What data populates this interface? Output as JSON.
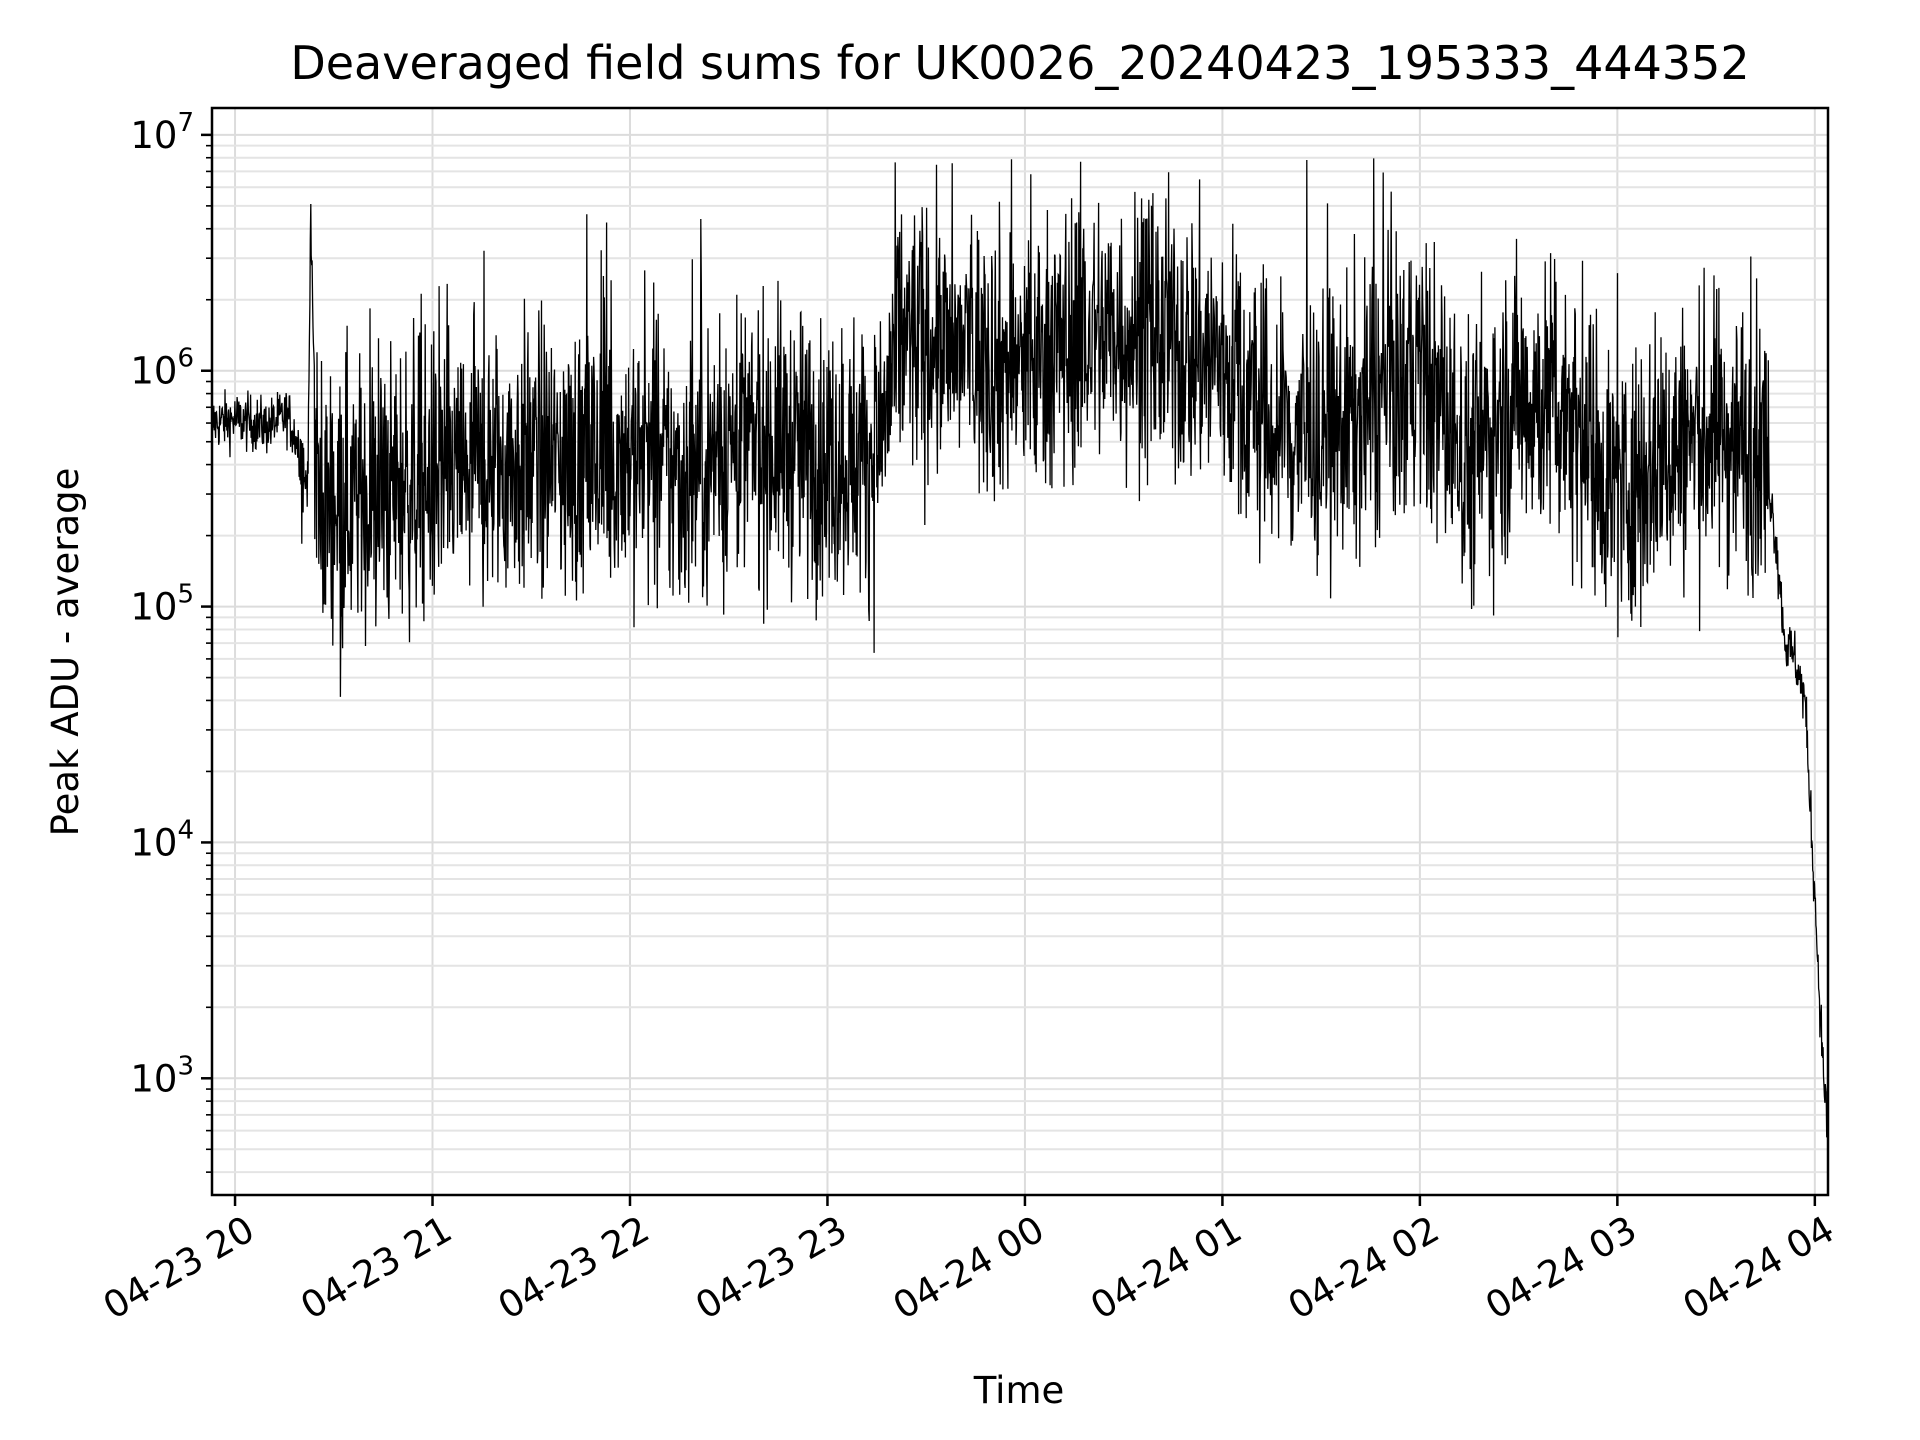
{
  "chart_data": {
    "type": "line",
    "title": "Deaveraged field sums for UK0026_20240423_195333_444352",
    "xlabel": "Time",
    "ylabel": "Peak ADU - average",
    "yscale": "log",
    "grid": "major and minor",
    "color": "#000000",
    "xlim": [
      "2024-04-23 19:53",
      "2024-04-24 04:04"
    ],
    "ylim": [
      320,
      13000000
    ],
    "x_ticks": [
      {
        "t": "2024-04-23 20:00",
        "label": "04-23 20"
      },
      {
        "t": "2024-04-23 21:00",
        "label": "04-23 21"
      },
      {
        "t": "2024-04-23 22:00",
        "label": "04-23 22"
      },
      {
        "t": "2024-04-23 23:00",
        "label": "04-23 23"
      },
      {
        "t": "2024-04-24 00:00",
        "label": "04-24 00"
      },
      {
        "t": "2024-04-24 01:00",
        "label": "04-24 01"
      },
      {
        "t": "2024-04-24 02:00",
        "label": "04-24 02"
      },
      {
        "t": "2024-04-24 03:00",
        "label": "04-24 03"
      },
      {
        "t": "2024-04-24 04:00",
        "label": "04-24 04"
      }
    ],
    "y_ticks": [
      {
        "value": 1000,
        "base": "10",
        "exp": "3"
      },
      {
        "value": 10000,
        "base": "10",
        "exp": "4"
      },
      {
        "value": 100000,
        "base": "10",
        "exp": "5"
      },
      {
        "value": 1000000,
        "base": "10",
        "exp": "6"
      },
      {
        "value": 10000000,
        "base": "10",
        "exp": "7"
      }
    ],
    "series": [
      {
        "name": "",
        "x": [
          "2024-04-23 19:53",
          "2024-04-23 20:00",
          "2024-04-23 20:10",
          "2024-04-23 20:16",
          "2024-04-23 20:20",
          "2024-04-23 20:22",
          "2024-04-23 20:23",
          "2024-04-23 20:25",
          "2024-04-23 20:30",
          "2024-04-23 20:40",
          "2024-04-23 20:50",
          "2024-04-23 21:00",
          "2024-04-23 21:15",
          "2024-04-23 21:30",
          "2024-04-23 21:45",
          "2024-04-23 22:00",
          "2024-04-23 22:15",
          "2024-04-23 22:30",
          "2024-04-23 22:45",
          "2024-04-23 23:00",
          "2024-04-23 23:15",
          "2024-04-23 23:22",
          "2024-04-23 23:30",
          "2024-04-23 23:45",
          "2024-04-24 00:00",
          "2024-04-24 00:15",
          "2024-04-24 00:30",
          "2024-04-24 00:45",
          "2024-04-24 01:00",
          "2024-04-24 01:15",
          "2024-04-24 01:30",
          "2024-04-24 01:45",
          "2024-04-24 02:00",
          "2024-04-24 02:15",
          "2024-04-24 02:30",
          "2024-04-24 02:45",
          "2024-04-24 03:00",
          "2024-04-24 03:15",
          "2024-04-24 03:30",
          "2024-04-24 03:40",
          "2024-04-24 03:45",
          "2024-04-24 03:48",
          "2024-04-24 03:51",
          "2024-04-24 03:54",
          "2024-04-24 03:57",
          "2024-04-24 04:00",
          "2024-04-24 04:02",
          "2024-04-24 04:04"
        ],
        "y": [
          600000,
          620000,
          580000,
          650000,
          450000,
          300000,
          4200000,
          250000,
          300000,
          280000,
          330000,
          350000,
          380000,
          420000,
          400000,
          450000,
          350000,
          480000,
          500000,
          420000,
          450000,
          1400000,
          1300000,
          1200000,
          1000000,
          1400000,
          1500000,
          1300000,
          1100000,
          550000,
          500000,
          700000,
          1000000,
          400000,
          800000,
          700000,
          300000,
          450000,
          550000,
          500000,
          450000,
          200000,
          70000,
          60000,
          40000,
          6000,
          1500,
          550
        ]
      }
    ]
  }
}
